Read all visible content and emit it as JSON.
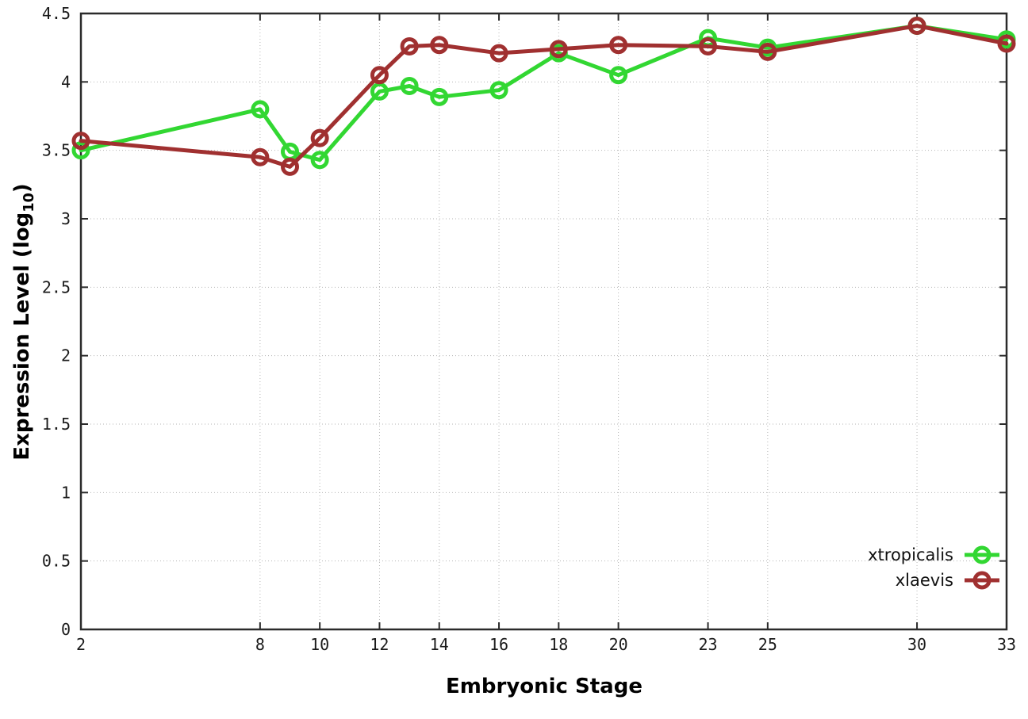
{
  "style": {
    "background": "#ffffff",
    "border_color": "#2b2b2b",
    "grid_color": "#b5b5b5",
    "tick_label_color": "#1a1a1a",
    "line_width": 5,
    "marker_radius": 9,
    "marker_stroke": 5
  },
  "chart_data": {
    "type": "line",
    "title": "",
    "xlabel": "Embryonic Stage",
    "ylabel": "Expression Level (log10)",
    "ylabel_main": "Expression Level (log",
    "ylabel_sub": "10",
    "ylabel_close": ")",
    "x": [
      2,
      8,
      9,
      10,
      12,
      13,
      14,
      16,
      18,
      20,
      23,
      25,
      30,
      33
    ],
    "series": [
      {
        "name": "xtropicalis",
        "color": "#32d732",
        "marker": "open-circle",
        "values": [
          3.5,
          3.8,
          3.49,
          3.43,
          3.93,
          3.97,
          3.89,
          3.94,
          4.21,
          4.05,
          4.32,
          4.25,
          4.41,
          4.31
        ]
      },
      {
        "name": "xlaevis",
        "color": "#a03030",
        "marker": "open-circle",
        "values": [
          3.57,
          3.45,
          3.38,
          3.59,
          4.05,
          4.26,
          4.27,
          4.21,
          4.24,
          4.27,
          4.26,
          4.22,
          4.41,
          4.28
        ]
      }
    ],
    "xlim": [
      2,
      33
    ],
    "ylim": [
      0,
      4.5
    ],
    "xticks": [
      2,
      8,
      10,
      12,
      14,
      16,
      18,
      20,
      23,
      25,
      30,
      33
    ],
    "xtick_labels": [
      "2",
      "8",
      "10",
      "12",
      "14",
      "16",
      "18",
      "20",
      "23",
      "25",
      "30",
      "33"
    ],
    "yticks": [
      0,
      0.5,
      1,
      1.5,
      2,
      2.5,
      3,
      3.5,
      4,
      4.5
    ],
    "ytick_labels": [
      "0",
      "0.5",
      "1",
      "1.5",
      "2",
      "2.5",
      "3",
      "3.5",
      "4",
      "4.5"
    ],
    "grid": "dotted",
    "ticks_mirrored": true,
    "legend_position": "bottom-right"
  }
}
